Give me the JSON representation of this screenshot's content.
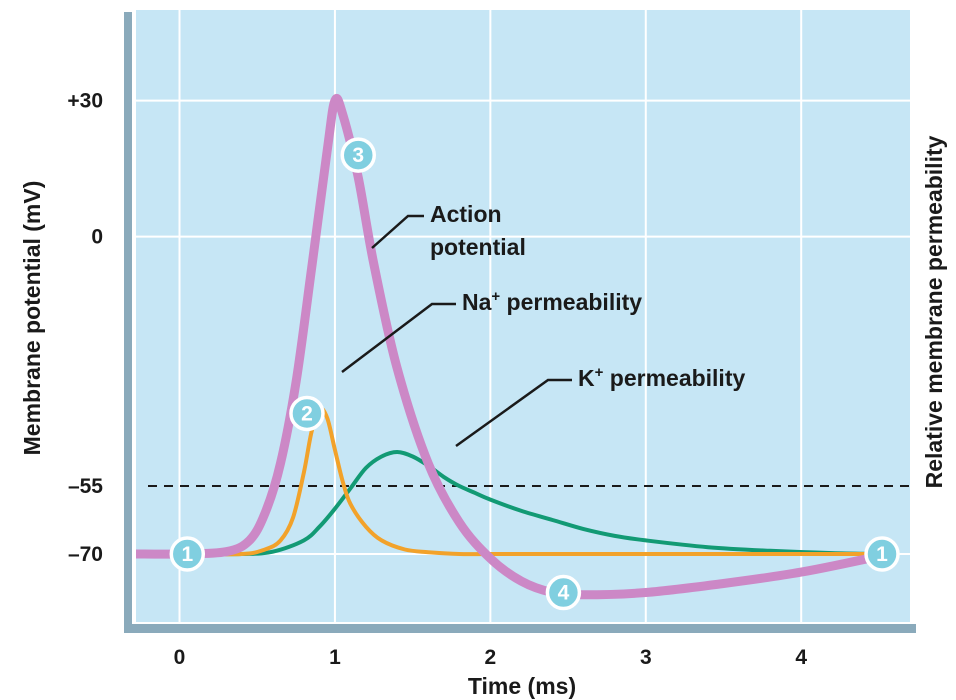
{
  "chart_data": {
    "type": "line",
    "xlabel": "Time (ms)",
    "ylabel": "Membrane potential (mV)",
    "y2label": "Relative membrane permeability",
    "xlim": [
      -0.28,
      4.7
    ],
    "ylim": [
      -85,
      50
    ],
    "x_ticks": [
      0,
      1,
      2,
      3,
      4
    ],
    "x_tick_labels": [
      "0",
      "1",
      "2",
      "3",
      "4"
    ],
    "y_ticks": [
      30,
      0,
      -55,
      -70
    ],
    "y_tick_labels": [
      "+30",
      "0",
      "–55",
      "–70"
    ],
    "threshold": -55,
    "grid": true,
    "colors": {
      "plot_background": "#c6e6f5",
      "grid": "#ffffff",
      "action_potential": "#cc88c6",
      "na_permeability": "#f2a22a",
      "k_permeability": "#129a74",
      "marker_fill": "#80cfe0",
      "axis_frame": "#7f9fb0"
    },
    "series": [
      {
        "name": "Action potential",
        "x": [
          -0.28,
          0,
          0.3,
          0.45,
          0.55,
          0.65,
          0.75,
          0.85,
          0.95,
          1.0,
          1.05,
          1.15,
          1.25,
          1.4,
          1.6,
          1.8,
          2.0,
          2.2,
          2.4,
          2.6,
          3.0,
          3.5,
          4.0,
          4.5
        ],
        "y": [
          -70,
          -70,
          -69.5,
          -67,
          -61,
          -50,
          -32,
          -7,
          19,
          30,
          27,
          13,
          -6,
          -29,
          -50,
          -63,
          -71,
          -76,
          -78.5,
          -79,
          -78.5,
          -76.5,
          -74,
          -70.5
        ]
      },
      {
        "name": "Na+ permeability",
        "x": [
          -0.28,
          0,
          0.4,
          0.55,
          0.65,
          0.73,
          0.8,
          0.85,
          0.9,
          0.95,
          1.0,
          1.05,
          1.1,
          1.2,
          1.3,
          1.45,
          1.6,
          1.8,
          2.0,
          2.3,
          3.0,
          4.0,
          4.5
        ],
        "y": [
          -70,
          -70,
          -70,
          -69,
          -67,
          -62,
          -52,
          -43,
          -38,
          -40,
          -47,
          -54,
          -59,
          -64,
          -67,
          -69,
          -69.6,
          -70,
          -70,
          -70,
          -70,
          -70,
          -70
        ]
      },
      {
        "name": "K+ permeability",
        "x": [
          -0.28,
          0,
          0.4,
          0.6,
          0.8,
          0.9,
          1.0,
          1.1,
          1.2,
          1.3,
          1.4,
          1.5,
          1.6,
          1.7,
          1.8,
          1.9,
          2.0,
          2.2,
          2.4,
          2.6,
          2.8,
          3.0,
          3.4,
          3.8,
          4.2,
          4.5
        ],
        "y": [
          -70,
          -70,
          -70,
          -69.5,
          -67,
          -64,
          -60,
          -55.5,
          -51,
          -48.5,
          -47.5,
          -48.5,
          -50.5,
          -53,
          -55,
          -56.5,
          -58,
          -60.5,
          -62.5,
          -64.5,
          -66,
          -67,
          -68.5,
          -69.3,
          -69.8,
          -70
        ]
      }
    ],
    "annotations": [
      {
        "lines": [
          "Action",
          "potential"
        ]
      },
      {
        "lines": [
          "Na",
          "+",
          " permeability"
        ]
      },
      {
        "lines": [
          "K",
          "+",
          " permeability"
        ]
      }
    ],
    "markers": [
      {
        "label": "1",
        "x": 0.05,
        "y": -70
      },
      {
        "label": "2",
        "x": 0.82,
        "y": -39
      },
      {
        "label": "3",
        "x": 1.15,
        "y": 18
      },
      {
        "label": "4",
        "x": 2.47,
        "y": -78.5
      },
      {
        "label": "1",
        "x": 4.52,
        "y": -70
      }
    ]
  }
}
